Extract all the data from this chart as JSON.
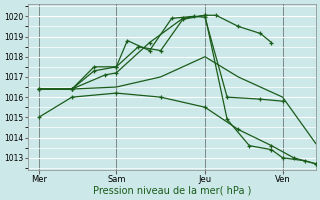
{
  "bg_color": "#cce8e8",
  "plot_bg_color": "#cce8e8",
  "grid_color": "#ffffff",
  "line_color": "#1a5c1a",
  "xlabel": "Pression niveau de la mer( hPa )",
  "ylim": [
    1012.4,
    1020.6
  ],
  "yticks": [
    1013,
    1014,
    1015,
    1016,
    1017,
    1018,
    1019,
    1020
  ],
  "xlim": [
    0,
    13
  ],
  "vlines": [
    0.5,
    4.0,
    8.0,
    11.5
  ],
  "xtick_positions": [
    0.5,
    4.0,
    8.0,
    11.5
  ],
  "xtick_labels": [
    "Mer",
    "Sam",
    "Jeu",
    "Ven"
  ],
  "lines": [
    {
      "x": [
        0.5,
        2.0,
        3.0,
        4.0,
        5.0,
        6.0,
        7.0,
        8.0,
        8.5,
        9.5,
        10.5,
        11.0
      ],
      "y": [
        1016.4,
        1016.4,
        1017.5,
        1017.5,
        1018.5,
        1018.3,
        1019.85,
        1020.05,
        1020.05,
        1019.5,
        1019.15,
        1018.7
      ],
      "marker": true
    },
    {
      "x": [
        0.5,
        2.0,
        3.0,
        4.0,
        4.5,
        5.5,
        6.5,
        7.5,
        8.0,
        9.0,
        10.5,
        11.5
      ],
      "y": [
        1016.4,
        1016.4,
        1017.3,
        1017.5,
        1018.8,
        1018.3,
        1019.9,
        1020.0,
        1019.95,
        1016.0,
        1015.9,
        1015.8
      ],
      "marker": true
    },
    {
      "x": [
        0.5,
        2.0,
        4.0,
        6.0,
        8.0,
        9.5,
        11.5,
        13.0
      ],
      "y": [
        1016.4,
        1016.4,
        1016.5,
        1017.0,
        1018.0,
        1017.0,
        1016.0,
        1013.7
      ],
      "marker": false
    },
    {
      "x": [
        0.5,
        2.0,
        3.5,
        4.0,
        5.5,
        7.0,
        8.0,
        9.0,
        10.0,
        11.0,
        11.5,
        12.5,
        13.0
      ],
      "y": [
        1016.4,
        1016.4,
        1017.1,
        1017.2,
        1018.7,
        1019.9,
        1020.05,
        1014.9,
        1013.6,
        1013.4,
        1013.0,
        1012.85,
        1012.7
      ],
      "marker": true
    },
    {
      "x": [
        0.5,
        2.0,
        4.0,
        6.0,
        8.0,
        9.5,
        11.0,
        12.0,
        13.0
      ],
      "y": [
        1015.0,
        1016.0,
        1016.2,
        1016.0,
        1015.5,
        1014.4,
        1013.6,
        1013.0,
        1012.7
      ],
      "marker": true
    }
  ]
}
